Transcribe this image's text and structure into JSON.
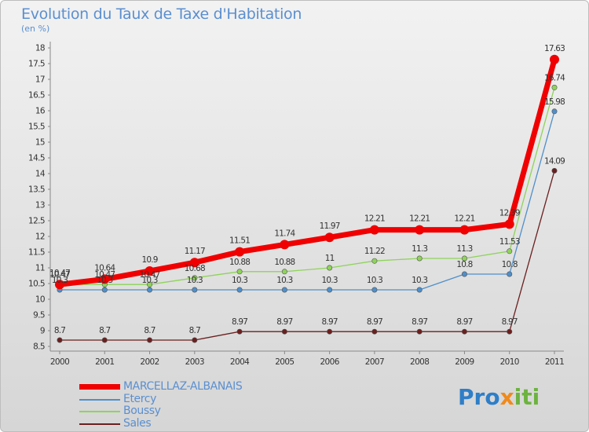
{
  "title": "Evolution du Taux de Taxe d'Habitation",
  "unit": "(en %)",
  "logo": {
    "part1": "Pro",
    "part2": "x",
    "part3": "iti"
  },
  "chart_data": {
    "type": "line",
    "title": "Evolution du Taux de Taxe d'Habitation",
    "ylabel": "(en %)",
    "xlabel": "",
    "ylim": [
      8.5,
      18
    ],
    "yticks": [
      8.5,
      9,
      9.5,
      10,
      10.5,
      11,
      11.5,
      12,
      12.5,
      13,
      13.5,
      14,
      14.5,
      15,
      15.5,
      16,
      16.5,
      17,
      17.5,
      18
    ],
    "categories": [
      "2000",
      "2001",
      "2002",
      "2003",
      "2004",
      "2005",
      "2006",
      "2007",
      "2008",
      "2009",
      "2010",
      "2011"
    ],
    "legend_position": "bottom-left",
    "series": [
      {
        "name": "Sales",
        "color": "#6b1f1f",
        "values": [
          8.7,
          8.7,
          8.7,
          8.7,
          8.97,
          8.97,
          8.97,
          8.97,
          8.97,
          8.97,
          8.97,
          14.09
        ],
        "labels": [
          "8.7",
          "8.7",
          "8.7",
          "8.7",
          "8.97",
          "8.97",
          "8.97",
          "8.97",
          "8.97",
          "8.97",
          "8.97",
          "14.09"
        ]
      },
      {
        "name": "Etercy",
        "color": "#4f8fca",
        "values": [
          10.3,
          10.3,
          10.3,
          10.3,
          10.3,
          10.3,
          10.3,
          10.3,
          10.3,
          10.8,
          10.8,
          15.98
        ],
        "labels": [
          "10.3",
          "10.3",
          "10.3",
          "10.3",
          "10.3",
          "10.3",
          "10.3",
          "10.3",
          "10.3",
          "10.8",
          "10.8",
          "15.98"
        ]
      },
      {
        "name": "Boussy",
        "color": "#8fd35a",
        "values": [
          10.47,
          10.47,
          10.47,
          10.68,
          10.88,
          10.88,
          11,
          11.22,
          11.3,
          11.3,
          11.53,
          16.74
        ],
        "labels": [
          "10.47",
          "10.47",
          "10.47",
          "10.68",
          "10.88",
          "10.88",
          "11",
          "11.22",
          "11.3",
          "11.3",
          "11.53",
          "16.74"
        ]
      },
      {
        "name": "MARCELLAZ-ALBANAIS",
        "color": "#f00000",
        "values": [
          10.47,
          10.64,
          10.9,
          11.17,
          11.51,
          11.74,
          11.97,
          12.21,
          12.21,
          12.21,
          12.39,
          17.63
        ],
        "labels": [
          "10.47",
          "10.64",
          "10.9",
          "11.17",
          "11.51",
          "11.74",
          "11.97",
          "12.21",
          "12.21",
          "12.21",
          "12.39",
          "17.63"
        ]
      }
    ],
    "legend_order": [
      "MARCELLAZ-ALBANAIS",
      "Etercy",
      "Boussy",
      "Sales"
    ]
  }
}
